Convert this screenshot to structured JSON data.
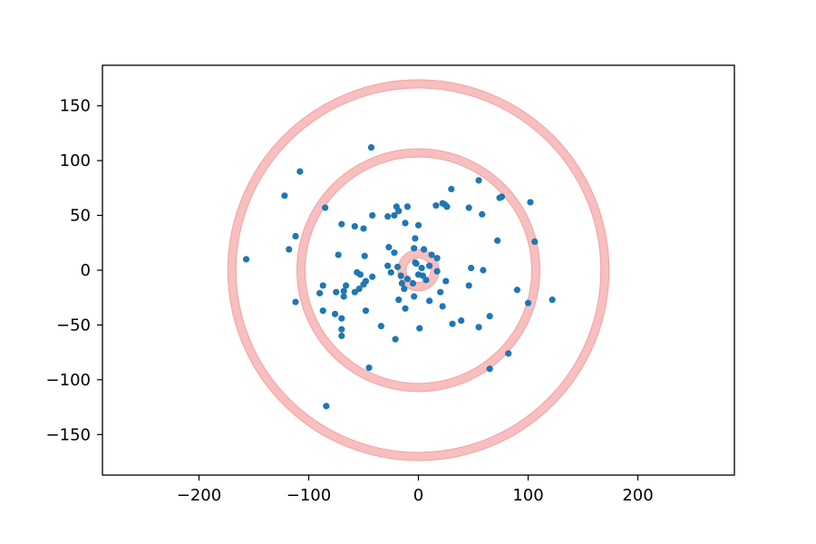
{
  "chart_data": {
    "type": "scatter",
    "title": "",
    "xlabel": "",
    "ylabel": "",
    "xlim": [
      -288,
      288
    ],
    "ylim": [
      -187,
      187
    ],
    "grid": false,
    "legend": "none",
    "x_ticks": [
      -200,
      -100,
      0,
      100,
      200
    ],
    "y_ticks": [
      -150,
      -100,
      -50,
      0,
      50,
      100,
      150
    ],
    "x_tick_labels": [
      "−200",
      "−100",
      "0",
      "100",
      "200"
    ],
    "y_tick_labels": [
      "−150",
      "−100",
      "−50",
      "0",
      "50",
      "100",
      "150"
    ],
    "point_color": "#1f77b4",
    "ring_color": "#f08080",
    "rings": [
      {
        "center": [
          0,
          0
        ],
        "radius": 15
      },
      {
        "center": [
          0,
          0
        ],
        "radius": 107
      },
      {
        "center": [
          0,
          0
        ],
        "radius": 170
      }
    ],
    "points": [
      [
        -43,
        112
      ],
      [
        -108,
        90
      ],
      [
        -122,
        68
      ],
      [
        -85,
        57
      ],
      [
        -112,
        31
      ],
      [
        -118,
        19
      ],
      [
        -157,
        10
      ],
      [
        -112,
        -29
      ],
      [
        -87,
        -37
      ],
      [
        -84,
        -124
      ],
      [
        -45,
        -89
      ],
      [
        -70,
        42
      ],
      [
        -58,
        40
      ],
      [
        -50,
        38
      ],
      [
        -42,
        50
      ],
      [
        -28,
        49
      ],
      [
        -22,
        50
      ],
      [
        -20,
        58
      ],
      [
        -18,
        54
      ],
      [
        -10,
        58
      ],
      [
        -12,
        43
      ],
      [
        0,
        41
      ],
      [
        -3,
        29
      ],
      [
        -27,
        21
      ],
      [
        -22,
        16
      ],
      [
        -4,
        20
      ],
      [
        5,
        19
      ],
      [
        12,
        14
      ],
      [
        17,
        11
      ],
      [
        -3,
        7
      ],
      [
        -2,
        6
      ],
      [
        3,
        2
      ],
      [
        10,
        4
      ],
      [
        17,
        -1
      ],
      [
        4,
        -5
      ],
      [
        0,
        -4
      ],
      [
        -10,
        -8
      ],
      [
        -5,
        -12
      ],
      [
        7,
        -9
      ],
      [
        -15,
        -12
      ],
      [
        -13,
        -17
      ],
      [
        -18,
        -27
      ],
      [
        -4,
        -24
      ],
      [
        -12,
        -35
      ],
      [
        1,
        -53
      ],
      [
        -21,
        -63
      ],
      [
        -34,
        -51
      ],
      [
        -48,
        -37
      ],
      [
        -75,
        -20
      ],
      [
        -68,
        -24
      ],
      [
        -66,
        -14
      ],
      [
        -68,
        -19
      ],
      [
        -87,
        -14
      ],
      [
        -90,
        -21
      ],
      [
        -76,
        -40
      ],
      [
        -70,
        -44
      ],
      [
        -70,
        -54
      ],
      [
        -70,
        -60
      ],
      [
        -56,
        -2
      ],
      [
        -53,
        -4
      ],
      [
        -50,
        -13
      ],
      [
        -54,
        -17
      ],
      [
        -58,
        -20
      ],
      [
        -48,
        -10
      ],
      [
        -42,
        -6
      ],
      [
        -49,
        13
      ],
      [
        -73,
        14
      ],
      [
        -28,
        4
      ],
      [
        -25,
        -2
      ],
      [
        -19,
        3
      ],
      [
        -16,
        -5
      ],
      [
        10,
        -28
      ],
      [
        20,
        -20
      ],
      [
        22,
        -33
      ],
      [
        25,
        -10
      ],
      [
        31,
        -49
      ],
      [
        39,
        -46
      ],
      [
        46,
        -14
      ],
      [
        48,
        2
      ],
      [
        55,
        -52
      ],
      [
        59,
        0
      ],
      [
        65,
        -42
      ],
      [
        65,
        -90
      ],
      [
        82,
        -76
      ],
      [
        90,
        -18
      ],
      [
        100,
        -30
      ],
      [
        122,
        -27
      ],
      [
        106,
        26
      ],
      [
        72,
        27
      ],
      [
        58,
        51
      ],
      [
        46,
        57
      ],
      [
        30,
        74
      ],
      [
        24,
        60
      ],
      [
        22,
        61
      ],
      [
        16,
        59
      ],
      [
        55,
        82
      ],
      [
        74,
        66
      ],
      [
        76,
        67
      ],
      [
        102,
        62
      ],
      [
        26,
        58
      ]
    ]
  }
}
